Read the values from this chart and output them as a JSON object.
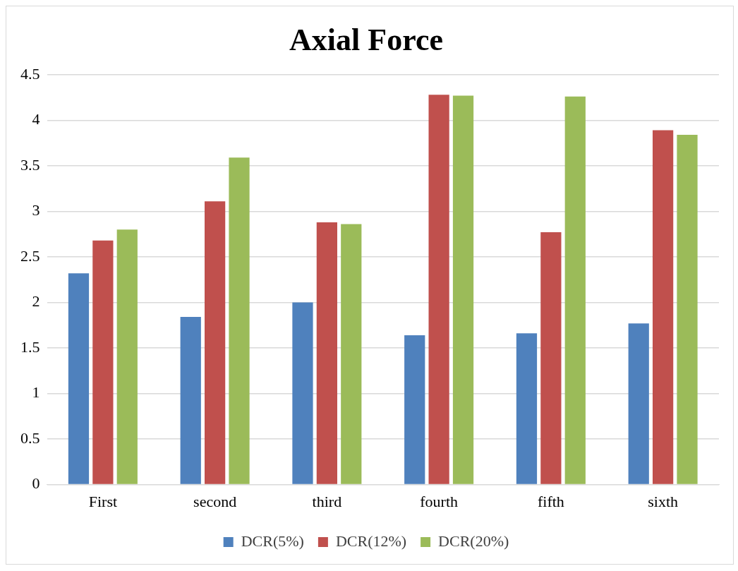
{
  "chart_data": {
    "type": "bar",
    "title": "Axial Force",
    "categories": [
      "First",
      "second",
      "third",
      "fourth",
      "fifth",
      "sixth"
    ],
    "series": [
      {
        "name": "DCR(5%)",
        "color": "#4f81bd",
        "values": [
          2.32,
          1.84,
          2.0,
          1.64,
          1.66,
          1.77
        ]
      },
      {
        "name": "DCR(12%)",
        "color": "#c0504d",
        "values": [
          2.68,
          3.11,
          2.88,
          4.28,
          2.77,
          3.89
        ]
      },
      {
        "name": "DCR(20%)",
        "color": "#9bbb59",
        "values": [
          2.8,
          3.59,
          2.86,
          4.27,
          4.26,
          3.84
        ]
      }
    ],
    "ylim": [
      0,
      4.5
    ],
    "yticks": [
      0,
      0.5,
      1,
      1.5,
      2,
      2.5,
      3,
      3.5,
      4,
      4.5
    ],
    "grid": "y",
    "legend": "bottom"
  }
}
